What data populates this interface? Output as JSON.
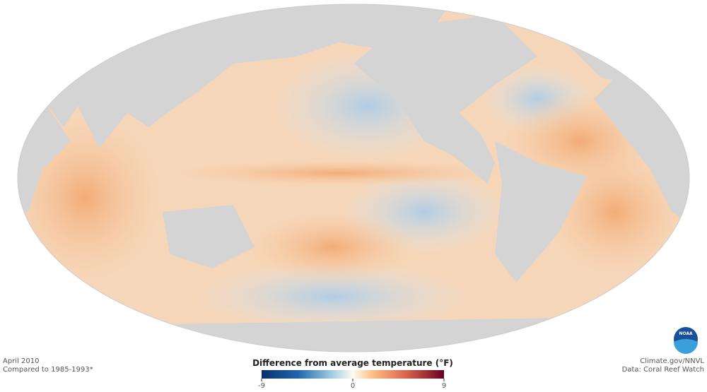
{
  "header": {
    "date": "April 2010",
    "baseline": "Compared to 1985-1993*"
  },
  "legend": {
    "title": "Difference from average temperature (°F)",
    "range": [
      -9,
      9
    ],
    "ticks": [
      -9,
      0,
      9
    ]
  },
  "credits": {
    "source": "Climate.gov/NNVL",
    "data": "Data: Coral Reef Watch",
    "logo": "NOAA"
  }
}
